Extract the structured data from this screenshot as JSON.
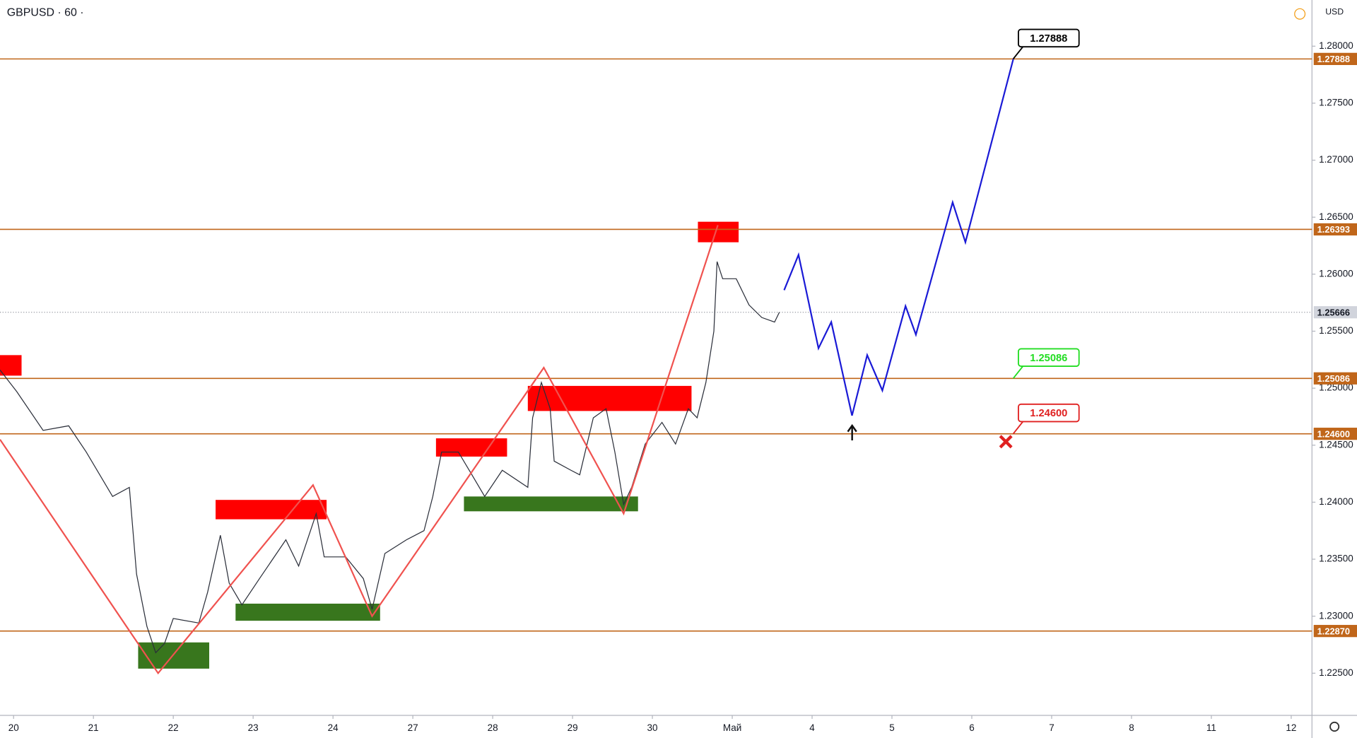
{
  "chart_data": {
    "type": "line",
    "title": "GBPUSD · 60 ·",
    "currency": "USD",
    "x": [
      -0.17,
      0.04,
      0.37,
      0.69,
      0.91,
      1.24,
      1.45,
      1.54,
      1.67,
      1.78,
      1.89,
      2.0,
      2.32,
      2.43,
      2.59,
      2.7,
      2.86,
      3.08,
      3.41,
      3.57,
      3.79,
      3.89,
      4.16,
      4.38,
      4.49,
      4.65,
      4.92,
      5.14,
      5.25,
      5.36,
      5.57,
      5.74,
      5.9,
      6.12,
      6.44,
      6.5,
      6.61,
      6.72,
      6.77,
      6.98,
      7.09,
      7.26,
      7.42,
      7.53,
      7.64,
      7.74,
      7.91,
      8.12,
      8.29,
      8.45,
      8.56,
      8.67,
      8.77,
      8.81,
      8.88,
      9.05,
      9.21,
      9.37,
      9.53,
      9.59
    ],
    "series": [
      {
        "color": "#2a2e39",
        "values": [
          1.2516,
          1.2497,
          1.2463,
          1.2467,
          1.2444,
          1.2405,
          1.2413,
          1.2337,
          1.2291,
          1.2268,
          1.2276,
          1.2298,
          1.2294,
          1.2321,
          1.2371,
          1.2329,
          1.231,
          1.2333,
          1.2367,
          1.2344,
          1.239,
          1.2352,
          1.2352,
          1.2333,
          1.2306,
          1.2355,
          1.2367,
          1.2375,
          1.2405,
          1.2444,
          1.2444,
          1.2424,
          1.2405,
          1.2428,
          1.2413,
          1.2474,
          1.2505,
          1.2482,
          1.2436,
          1.2428,
          1.2424,
          1.2474,
          1.2482,
          1.2444,
          1.2398,
          1.2413,
          1.2451,
          1.247,
          1.2451,
          1.2482,
          1.2474,
          1.2505,
          1.255,
          1.2611,
          1.2596,
          1.2596,
          1.2573,
          1.2562,
          1.2558,
          1.25666
        ]
      },
      {
        "color": "#f0524f",
        "x": [
          -0.17,
          1.81,
          3.75,
          4.49,
          6.64,
          7.64,
          8.82
        ],
        "values": [
          1.2455,
          1.225,
          1.2415,
          1.23,
          1.2518,
          1.239,
          1.2643
        ]
      },
      {
        "color": "#1a1ad6",
        "x": [
          9.65,
          9.83,
          10.08,
          10.24,
          10.5,
          10.69,
          10.88,
          11.17,
          11.3,
          11.76,
          11.92,
          12.52
        ],
        "values": [
          1.2586,
          1.2617,
          1.2535,
          1.2558,
          1.2476,
          1.2529,
          1.2498,
          1.2572,
          1.2547,
          1.2663,
          1.2628,
          1.27888
        ]
      }
    ],
    "zones": [
      {
        "color": "#ff0000",
        "x": [
          -0.17,
          0.1
        ],
        "y": [
          1.2511,
          1.2529
        ]
      },
      {
        "color": "#38761d",
        "x": [
          1.56,
          2.45
        ],
        "y": [
          1.2254,
          1.2277
        ]
      },
      {
        "color": "#ff0000",
        "x": [
          2.53,
          3.92
        ],
        "y": [
          1.2385,
          1.2402
        ]
      },
      {
        "color": "#38761d",
        "x": [
          2.78,
          4.59
        ],
        "y": [
          1.2296,
          1.2311
        ]
      },
      {
        "color": "#ff0000",
        "x": [
          5.29,
          6.18
        ],
        "y": [
          1.244,
          1.2456
        ]
      },
      {
        "color": "#38761d",
        "x": [
          5.64,
          7.82
        ],
        "y": [
          1.2392,
          1.2405
        ]
      },
      {
        "color": "#ff0000",
        "x": [
          6.44,
          8.49
        ],
        "y": [
          1.248,
          1.2502
        ]
      },
      {
        "color": "#ff0000",
        "x": [
          8.57,
          9.08
        ],
        "y": [
          1.2628,
          1.2646
        ]
      }
    ],
    "levels": [
      1.27888,
      1.26393,
      1.25086,
      {
        "value": 1.246,
        "label": "1.24600"
      },
      {
        "value": 1.2287,
        "label": "1.22870"
      }
    ],
    "level_color": "#c0661a",
    "last_price": 1.25666,
    "callouts": [
      {
        "level": 0,
        "color": "#000000"
      },
      {
        "level": 2,
        "color": "#22dd22"
      },
      {
        "level": 3,
        "color": "#e02020"
      }
    ],
    "xlim": [
      -0.17,
      16.26
    ],
    "ylim": [
      1.2213,
      1.28405
    ],
    "xticks": [
      {
        "value": 0,
        "label": "20"
      },
      {
        "value": 1,
        "label": "21"
      },
      {
        "value": 2,
        "label": "22"
      },
      {
        "value": 3,
        "label": "23"
      },
      {
        "value": 4,
        "label": "24"
      },
      {
        "value": 5,
        "label": "27"
      },
      {
        "value": 6,
        "label": "28"
      },
      {
        "value": 7,
        "label": "29"
      },
      {
        "value": 8,
        "label": "30"
      },
      {
        "value": 9,
        "label": "Май"
      },
      {
        "value": 10,
        "label": "4"
      },
      {
        "value": 11,
        "label": "5"
      },
      {
        "value": 12,
        "label": "6"
      },
      {
        "value": 13,
        "label": "7"
      },
      {
        "value": 14,
        "label": "8"
      },
      {
        "value": 15,
        "label": "11"
      },
      {
        "value": 16,
        "label": "12"
      }
    ],
    "yticks": [
      {
        "value": 1.225,
        "label": "1.22500"
      },
      {
        "value": 1.23,
        "label": "1.23000"
      },
      {
        "value": 1.235,
        "label": "1.23500"
      },
      {
        "value": 1.24,
        "label": "1.24000"
      },
      {
        "value": 1.245,
        "label": "1.24500"
      },
      {
        "value": 1.25,
        "label": "1.25000"
      },
      {
        "value": 1.255,
        "label": "1.25500"
      },
      {
        "value": 1.26,
        "label": "1.26000"
      },
      {
        "value": 1.265,
        "label": "1.26500"
      },
      {
        "value": 1.27,
        "label": "1.27000"
      },
      {
        "value": 1.275,
        "label": "1.27500"
      },
      {
        "value": 1.28,
        "label": "1.28000"
      }
    ]
  }
}
